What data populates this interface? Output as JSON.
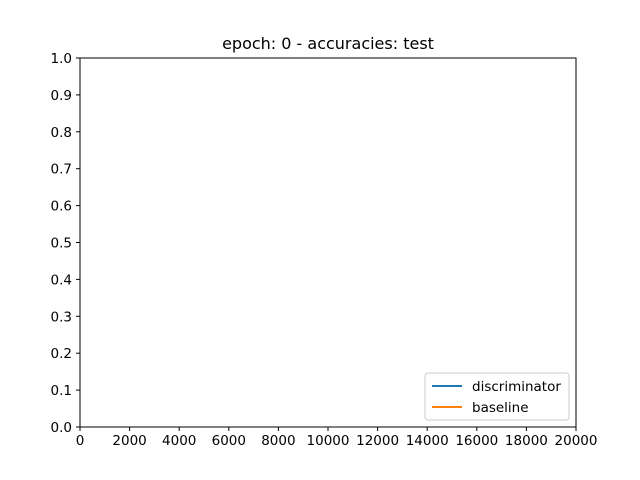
{
  "chart_data": {
    "type": "line",
    "title": "epoch: 0 - accuracies: test",
    "xlabel": "",
    "ylabel": "",
    "xlim": [
      0,
      20000
    ],
    "ylim": [
      0.0,
      1.0
    ],
    "x_ticks": [
      0,
      2000,
      4000,
      6000,
      8000,
      10000,
      12000,
      14000,
      16000,
      18000,
      20000
    ],
    "x_tick_labels": [
      "0",
      "2000",
      "4000",
      "6000",
      "8000",
      "10000",
      "12000",
      "14000",
      "16000",
      "18000",
      "20000"
    ],
    "y_ticks": [
      0.0,
      0.1,
      0.2,
      0.3,
      0.4,
      0.5,
      0.6,
      0.7,
      0.8,
      0.9,
      1.0
    ],
    "y_tick_labels": [
      "0.0",
      "0.1",
      "0.2",
      "0.3",
      "0.4",
      "0.5",
      "0.6",
      "0.7",
      "0.8",
      "0.9",
      "1.0"
    ],
    "grid": false,
    "legend_position": "lower-right",
    "series": [
      {
        "name": "discriminator",
        "color": "#1f77b4",
        "x": [],
        "y": []
      },
      {
        "name": "baseline",
        "color": "#ff7f0e",
        "x": [],
        "y": []
      }
    ]
  }
}
